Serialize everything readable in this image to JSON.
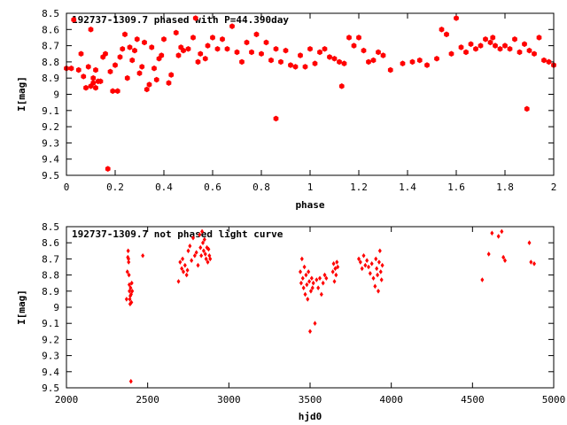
{
  "colors": {
    "points": "#ff0000",
    "axes": "#000000",
    "background": "#ffffff"
  },
  "chart_data": [
    {
      "type": "scatter",
      "title": "192737-1309.7 phased with P=44.390day",
      "xlabel": "phase",
      "ylabel": "I[mag]",
      "xlim": [
        0,
        2
      ],
      "ylim": [
        8.5,
        9.5
      ],
      "y_inverted": true,
      "grid": false,
      "marker": "filled-hexagon",
      "xticks": [
        "0",
        "0.2",
        "0.4",
        "0.6",
        "0.8",
        "1",
        "1.2",
        "1.4",
        "1.6",
        "1.8",
        "2"
      ],
      "yticks": [
        "8.5",
        "8.6",
        "8.7",
        "8.8",
        "8.9",
        "9",
        "9.1",
        "9.2",
        "9.3",
        "9.4",
        "9.5"
      ],
      "x": [
        0.0,
        0.02,
        0.03,
        0.05,
        0.06,
        0.07,
        0.08,
        0.09,
        0.1,
        0.1,
        0.11,
        0.11,
        0.12,
        0.12,
        0.13,
        0.14,
        0.15,
        0.16,
        0.17,
        0.18,
        0.19,
        0.2,
        0.21,
        0.22,
        0.23,
        0.24,
        0.25,
        0.26,
        0.27,
        0.28,
        0.29,
        0.3,
        0.31,
        0.32,
        0.33,
        0.34,
        0.35,
        0.36,
        0.37,
        0.38,
        0.39,
        0.4,
        0.42,
        0.43,
        0.45,
        0.46,
        0.47,
        0.48,
        0.5,
        0.52,
        0.53,
        0.54,
        0.55,
        0.57,
        0.58,
        0.6,
        0.62,
        0.64,
        0.66,
        0.68,
        0.7,
        0.72,
        0.74,
        0.76,
        0.78,
        0.8,
        0.82,
        0.84,
        0.86,
        0.86,
        0.88,
        0.9,
        0.92,
        0.94,
        0.96,
        0.98,
        1.0,
        1.02,
        1.04,
        1.06,
        1.08,
        1.1,
        1.12,
        1.13,
        1.14,
        1.16,
        1.18,
        1.2,
        1.22,
        1.24,
        1.26,
        1.28,
        1.3,
        1.33,
        1.38,
        1.42,
        1.45,
        1.48,
        1.52,
        1.54,
        1.56,
        1.58,
        1.6,
        1.62,
        1.64,
        1.66,
        1.68,
        1.7,
        1.72,
        1.74,
        1.75,
        1.76,
        1.78,
        1.8,
        1.82,
        1.84,
        1.86,
        1.88,
        1.89,
        1.9,
        1.92,
        1.94,
        1.96,
        1.98,
        2.0
      ],
      "y": [
        8.84,
        8.84,
        8.54,
        8.85,
        8.75,
        8.89,
        8.96,
        8.83,
        8.95,
        8.6,
        8.9,
        8.93,
        8.85,
        8.96,
        8.92,
        8.92,
        8.77,
        8.75,
        9.46,
        8.86,
        8.98,
        8.82,
        8.98,
        8.77,
        8.72,
        8.63,
        8.9,
        8.71,
        8.79,
        8.73,
        8.66,
        8.87,
        8.83,
        8.68,
        8.97,
        8.94,
        8.71,
        8.84,
        8.91,
        8.78,
        8.76,
        8.66,
        8.93,
        8.88,
        8.62,
        8.76,
        8.71,
        8.73,
        8.72,
        8.65,
        8.53,
        8.8,
        8.75,
        8.78,
        8.7,
        8.65,
        8.72,
        8.66,
        8.72,
        8.58,
        8.74,
        8.8,
        8.68,
        8.74,
        8.63,
        8.75,
        8.68,
        8.79,
        9.15,
        8.72,
        8.8,
        8.73,
        8.82,
        8.83,
        8.76,
        8.83,
        8.72,
        8.81,
        8.74,
        8.72,
        8.77,
        8.78,
        8.8,
        8.95,
        8.81,
        8.65,
        8.7,
        8.65,
        8.73,
        8.8,
        8.79,
        8.74,
        8.76,
        8.85,
        8.81,
        8.8,
        8.79,
        8.82,
        8.78,
        8.6,
        8.63,
        8.75,
        8.53,
        8.71,
        8.74,
        8.69,
        8.72,
        8.7,
        8.66,
        8.68,
        8.65,
        8.7,
        8.72,
        8.7,
        8.72,
        8.66,
        8.74,
        8.69,
        9.09,
        8.73,
        8.75,
        8.65,
        8.79,
        8.8,
        8.82
      ]
    },
    {
      "type": "scatter",
      "title": "192737-1309.7 not phased light curve",
      "xlabel": "hjd0",
      "ylabel": "I[mag]",
      "xlim": [
        2000,
        5000
      ],
      "ylim": [
        8.5,
        9.5
      ],
      "y_inverted": true,
      "grid": false,
      "marker": "small-diamond",
      "xticks": [
        "2000",
        "2500",
        "3000",
        "3500",
        "4000",
        "4500",
        "5000"
      ],
      "yticks": [
        "8.5",
        "8.6",
        "8.7",
        "8.8",
        "8.9",
        "9",
        "9.1",
        "9.2",
        "9.3",
        "9.4",
        "9.5"
      ],
      "x": [
        2370,
        2375,
        2378,
        2380,
        2382,
        2383,
        2385,
        2387,
        2388,
        2390,
        2392,
        2393,
        2395,
        2397,
        2398,
        2400,
        2402,
        2405,
        2470,
        2690,
        2700,
        2710,
        2715,
        2720,
        2730,
        2740,
        2745,
        2750,
        2760,
        2770,
        2780,
        2790,
        2800,
        2810,
        2820,
        2825,
        2830,
        2835,
        2840,
        2845,
        2850,
        2855,
        2860,
        2865,
        2870,
        2875,
        2880,
        2885,
        3440,
        3445,
        3450,
        3455,
        3460,
        3465,
        3470,
        3475,
        3480,
        3485,
        3490,
        3495,
        3500,
        3505,
        3510,
        3515,
        3520,
        3530,
        3540,
        3550,
        3560,
        3570,
        3580,
        3590,
        3600,
        3640,
        3645,
        3650,
        3655,
        3660,
        3665,
        3670,
        3800,
        3810,
        3820,
        3830,
        3840,
        3850,
        3860,
        3870,
        3880,
        3890,
        3900,
        3905,
        3910,
        3915,
        3920,
        3925,
        3930,
        3935,
        3940,
        3945,
        4560,
        4600,
        4620,
        4660,
        4680,
        4690,
        4700,
        4850,
        4860,
        4880
      ],
      "y": [
        8.95,
        8.78,
        8.69,
        8.65,
        8.7,
        8.72,
        8.8,
        8.86,
        8.9,
        8.95,
        8.98,
        8.93,
        8.88,
        9.46,
        8.92,
        8.97,
        8.85,
        8.9,
        8.68,
        8.84,
        8.72,
        8.76,
        8.7,
        8.78,
        8.74,
        8.8,
        8.77,
        8.65,
        8.62,
        8.71,
        8.57,
        8.68,
        8.66,
        8.74,
        8.55,
        8.63,
        8.68,
        8.53,
        8.6,
        8.65,
        8.58,
        8.67,
        8.7,
        8.63,
        8.72,
        8.64,
        8.68,
        8.7,
        8.78,
        8.85,
        8.7,
        8.82,
        8.88,
        8.75,
        8.92,
        8.8,
        8.86,
        8.95,
        8.78,
        8.84,
        9.15,
        8.9,
        8.82,
        8.88,
        8.85,
        9.1,
        8.83,
        8.88,
        8.82,
        8.92,
        8.85,
        8.8,
        8.82,
        8.78,
        8.73,
        8.84,
        8.76,
        8.8,
        8.72,
        8.75,
        8.7,
        8.72,
        8.76,
        8.68,
        8.74,
        8.71,
        8.75,
        8.79,
        8.73,
        8.82,
        8.87,
        8.7,
        8.76,
        8.8,
        8.9,
        8.72,
        8.65,
        8.78,
        8.83,
        8.74,
        8.83,
        8.67,
        8.54,
        8.56,
        8.53,
        8.69,
        8.71,
        8.6,
        8.72,
        8.73
      ]
    }
  ]
}
